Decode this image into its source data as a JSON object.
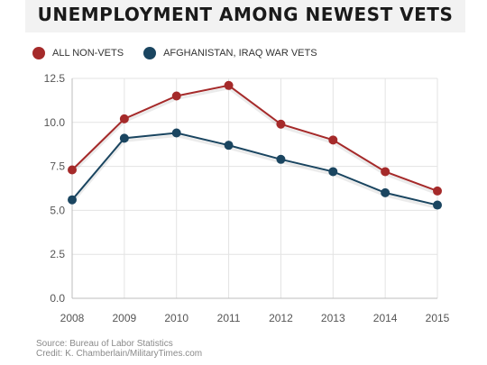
{
  "title": "UNEMPLOYMENT AMONG NEWEST VETS",
  "colors": {
    "nonvets": "#a52a2a",
    "vets": "#1a4560",
    "grid": "#e3e3e3",
    "axis": "#555555"
  },
  "legend": [
    {
      "label": "ALL NON-VETS",
      "color": "#a52a2a"
    },
    {
      "label": "AFGHANISTAN, IRAQ WAR VETS",
      "color": "#1a4560"
    }
  ],
  "chart_data": {
    "type": "line",
    "x": [
      "2008",
      "2009",
      "2010",
      "2011",
      "2012",
      "2013",
      "2014",
      "2015"
    ],
    "series": [
      {
        "name": "ALL NON-VETS",
        "values": [
          7.3,
          10.2,
          11.5,
          12.1,
          9.9,
          9.0,
          7.2,
          6.1
        ]
      },
      {
        "name": "AFGHANISTAN, IRAQ WAR VETS",
        "values": [
          5.6,
          9.1,
          9.4,
          8.7,
          7.9,
          7.2,
          6.0,
          5.3
        ]
      }
    ],
    "yticks": [
      "0.0",
      "2.5",
      "5.0",
      "7.5",
      "10.0",
      "12.5"
    ],
    "ylim": [
      0,
      12.5
    ],
    "grid": true,
    "legend_position": "top-left"
  },
  "footer": {
    "source": "Source: Bureau of Labor Statistics",
    "credit": "Credit: K. Chamberlain/MilitaryTimes.com"
  }
}
